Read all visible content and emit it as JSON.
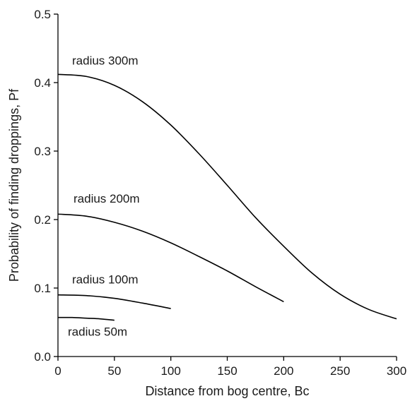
{
  "chart_data": {
    "type": "line",
    "title": "",
    "xlabel": "Distance from bog centre, Bc",
    "ylabel": "Probability of finding droppings, Pf",
    "xlim": [
      0,
      300
    ],
    "ylim": [
      0,
      0.5
    ],
    "x_ticks": [
      "0",
      "50",
      "100",
      "150",
      "200",
      "250",
      "300"
    ],
    "y_ticks": [
      "0.0",
      "0.1",
      "0.2",
      "0.3",
      "0.4",
      "0.5"
    ],
    "grid": false,
    "series": [
      {
        "name": "radius 300m",
        "x": [
          0,
          25,
          50,
          75,
          100,
          125,
          150,
          175,
          200,
          225,
          250,
          275,
          300
        ],
        "y": [
          0.412,
          0.409,
          0.396,
          0.372,
          0.338,
          0.296,
          0.25,
          0.203,
          0.161,
          0.122,
          0.091,
          0.069,
          0.055
        ]
      },
      {
        "name": "radius 200m",
        "x": [
          0,
          25,
          50,
          75,
          100,
          125,
          150,
          175,
          200
        ],
        "y": [
          0.208,
          0.205,
          0.196,
          0.183,
          0.166,
          0.146,
          0.125,
          0.102,
          0.08
        ]
      },
      {
        "name": "radius 100m",
        "x": [
          0,
          25,
          50,
          75,
          100
        ],
        "y": [
          0.09,
          0.089,
          0.085,
          0.078,
          0.07
        ]
      },
      {
        "name": "radius 50m",
        "x": [
          0,
          12.5,
          25,
          37.5,
          50
        ],
        "y": [
          0.057,
          0.057,
          0.056,
          0.055,
          0.053
        ]
      }
    ]
  }
}
